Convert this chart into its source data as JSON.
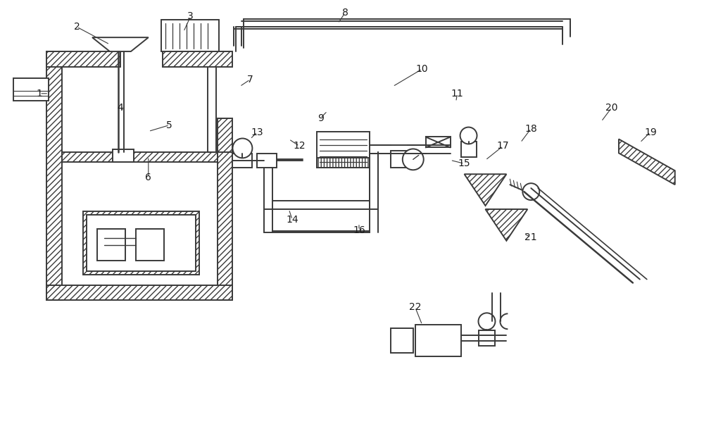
{
  "bg_color": "#ffffff",
  "lc": "#3a3a3a",
  "lw": 1.4,
  "fig_width": 10.0,
  "fig_height": 6.02
}
